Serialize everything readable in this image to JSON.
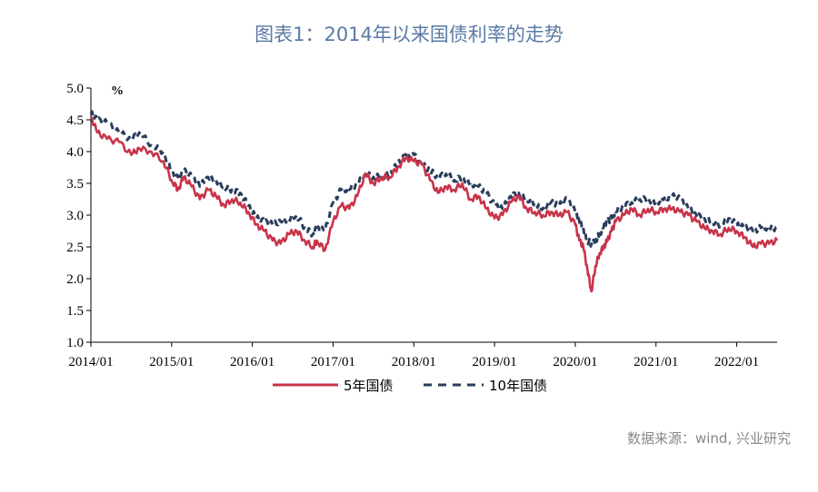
{
  "title": "图表1：2014年以来国债利率的走势",
  "source": "数据来源：wind, 兴业研究",
  "chart_data": {
    "type": "line",
    "ylabel": "%",
    "ylim": [
      1.0,
      5.0
    ],
    "yticks": [
      "1.0",
      "1.5",
      "2.0",
      "2.5",
      "3.0",
      "3.5",
      "4.0",
      "4.5",
      "5.0"
    ],
    "xlim": [
      2014.0,
      2022.5
    ],
    "xticks": [
      "2014/01",
      "2015/01",
      "2016/01",
      "2017/01",
      "2018/01",
      "2019/01",
      "2020/01",
      "2021/01",
      "2022/01"
    ],
    "series": [
      {
        "name": "5年国债",
        "color": "#c8344a",
        "style": "solid",
        "x": [
          2014.0,
          2014.08,
          2014.2,
          2014.35,
          2014.5,
          2014.6,
          2014.75,
          2014.9,
          2015.0,
          2015.08,
          2015.15,
          2015.25,
          2015.35,
          2015.45,
          2015.55,
          2015.65,
          2015.75,
          2015.85,
          2015.95,
          2016.05,
          2016.15,
          2016.25,
          2016.35,
          2016.45,
          2016.55,
          2016.65,
          2016.75,
          2016.8,
          2016.9,
          2017.0,
          2017.1,
          2017.2,
          2017.3,
          2017.4,
          2017.5,
          2017.6,
          2017.7,
          2017.8,
          2017.9,
          2018.0,
          2018.1,
          2018.2,
          2018.3,
          2018.4,
          2018.5,
          2018.6,
          2018.7,
          2018.8,
          2018.9,
          2019.0,
          2019.1,
          2019.2,
          2019.3,
          2019.4,
          2019.5,
          2019.6,
          2019.7,
          2019.8,
          2019.9,
          2020.0,
          2020.05,
          2020.1,
          2020.15,
          2020.2,
          2020.25,
          2020.3,
          2020.35,
          2020.4,
          2020.45,
          2020.5,
          2020.6,
          2020.7,
          2020.8,
          2020.9,
          2021.0,
          2021.1,
          2021.2,
          2021.3,
          2021.4,
          2021.5,
          2021.6,
          2021.7,
          2021.8,
          2021.9,
          2022.0,
          2022.1,
          2022.2,
          2022.3,
          2022.4,
          2022.5
        ],
        "values": [
          4.55,
          4.3,
          4.2,
          4.15,
          3.95,
          4.05,
          4.0,
          3.85,
          3.55,
          3.4,
          3.6,
          3.45,
          3.25,
          3.4,
          3.3,
          3.15,
          3.25,
          3.2,
          3.05,
          2.85,
          2.75,
          2.6,
          2.55,
          2.7,
          2.75,
          2.6,
          2.5,
          2.6,
          2.45,
          2.9,
          3.15,
          3.1,
          3.3,
          3.65,
          3.5,
          3.6,
          3.6,
          3.75,
          3.9,
          3.85,
          3.8,
          3.55,
          3.35,
          3.45,
          3.4,
          3.5,
          3.25,
          3.3,
          3.1,
          2.95,
          3.0,
          3.2,
          3.3,
          3.1,
          3.05,
          3.0,
          3.05,
          3.0,
          3.05,
          2.85,
          2.6,
          2.5,
          2.15,
          1.8,
          2.2,
          2.4,
          2.5,
          2.6,
          2.75,
          2.9,
          3.0,
          3.1,
          3.0,
          3.1,
          3.05,
          3.1,
          3.1,
          3.05,
          3.0,
          2.9,
          2.8,
          2.75,
          2.7,
          2.8,
          2.75,
          2.65,
          2.5,
          2.55,
          2.55,
          2.6
        ]
      },
      {
        "name": "10年国债",
        "color": "#2b3d5c",
        "style": "dashed",
        "x": [
          2014.0,
          2014.08,
          2014.2,
          2014.35,
          2014.5,
          2014.6,
          2014.75,
          2014.9,
          2015.0,
          2015.08,
          2015.15,
          2015.25,
          2015.35,
          2015.45,
          2015.55,
          2015.65,
          2015.75,
          2015.85,
          2015.95,
          2016.05,
          2016.15,
          2016.25,
          2016.35,
          2016.45,
          2016.55,
          2016.65,
          2016.75,
          2016.8,
          2016.9,
          2017.0,
          2017.1,
          2017.2,
          2017.3,
          2017.4,
          2017.5,
          2017.6,
          2017.7,
          2017.8,
          2017.9,
          2018.0,
          2018.1,
          2018.2,
          2018.3,
          2018.4,
          2018.5,
          2018.6,
          2018.7,
          2018.8,
          2018.9,
          2019.0,
          2019.1,
          2019.2,
          2019.3,
          2019.4,
          2019.5,
          2019.6,
          2019.7,
          2019.8,
          2019.9,
          2020.0,
          2020.05,
          2020.1,
          2020.15,
          2020.2,
          2020.25,
          2020.3,
          2020.35,
          2020.4,
          2020.45,
          2020.5,
          2020.6,
          2020.7,
          2020.8,
          2020.9,
          2021.0,
          2021.1,
          2021.2,
          2021.3,
          2021.4,
          2021.5,
          2021.6,
          2021.7,
          2021.8,
          2021.9,
          2022.0,
          2022.1,
          2022.2,
          2022.3,
          2022.4,
          2022.5
        ],
        "values": [
          4.6,
          4.5,
          4.45,
          4.3,
          4.2,
          4.3,
          4.1,
          4.0,
          3.7,
          3.6,
          3.7,
          3.6,
          3.45,
          3.6,
          3.55,
          3.45,
          3.4,
          3.35,
          3.15,
          2.95,
          2.9,
          2.85,
          2.9,
          2.95,
          3.0,
          2.8,
          2.7,
          2.8,
          2.75,
          3.2,
          3.4,
          3.4,
          3.5,
          3.65,
          3.6,
          3.6,
          3.65,
          3.8,
          3.95,
          3.95,
          3.8,
          3.7,
          3.6,
          3.65,
          3.55,
          3.6,
          3.5,
          3.45,
          3.35,
          3.15,
          3.1,
          3.3,
          3.35,
          3.25,
          3.2,
          3.1,
          3.2,
          3.15,
          3.25,
          3.05,
          2.9,
          2.8,
          2.6,
          2.55,
          2.6,
          2.7,
          2.8,
          2.9,
          2.95,
          3.05,
          3.15,
          3.2,
          3.25,
          3.25,
          3.2,
          3.25,
          3.3,
          3.25,
          3.1,
          3.0,
          2.95,
          2.9,
          2.85,
          2.95,
          2.85,
          2.8,
          2.75,
          2.8,
          2.8,
          2.8
        ]
      }
    ]
  }
}
